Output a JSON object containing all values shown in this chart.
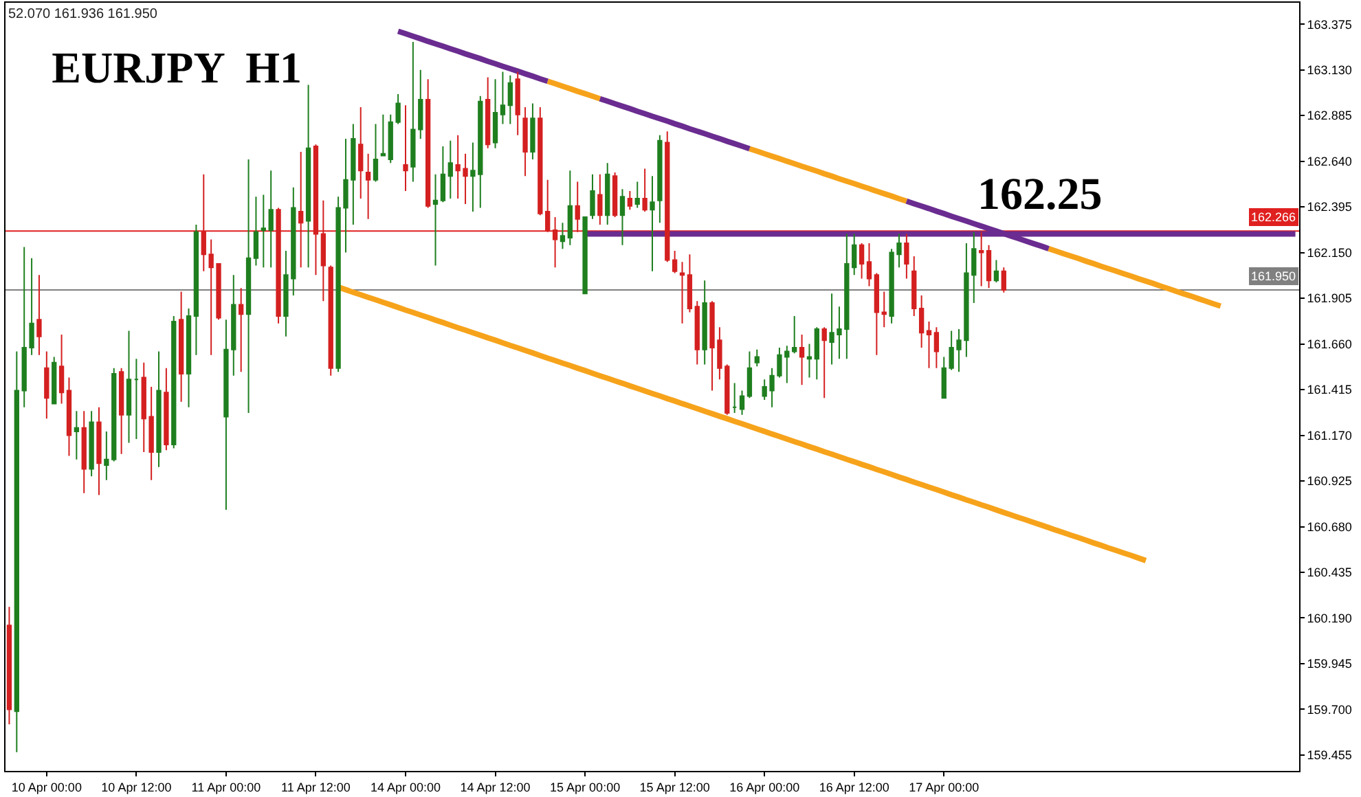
{
  "chart_data": {
    "type": "candlestick",
    "title": "EURJPY  H1",
    "annotations": [
      "52.070 161.936 161.950",
      {
        "text": "162.25",
        "y": 162.25
      }
    ],
    "categories": [
      null,
      null,
      null,
      null,
      null,
      "10 Apr 00:00",
      null,
      null,
      null,
      null,
      null,
      null,
      null,
      null,
      null,
      null,
      null,
      "10 Apr 12:00",
      null,
      null,
      null,
      null,
      null,
      null,
      null,
      null,
      null,
      null,
      null,
      "11 Apr 00:00",
      null,
      null,
      null,
      null,
      null,
      null,
      null,
      null,
      null,
      null,
      null,
      "11 Apr 12:00",
      null,
      null,
      null,
      null,
      null,
      null,
      null,
      null,
      null,
      null,
      null,
      "14 Apr 00:00",
      null,
      null,
      null,
      null,
      null,
      null,
      null,
      null,
      null,
      null,
      null,
      "14 Apr 12:00",
      null,
      null,
      null,
      null,
      null,
      null,
      null,
      null,
      null,
      null,
      null,
      "15 Apr 00:00",
      null,
      null,
      null,
      null,
      null,
      null,
      null,
      null,
      null,
      null,
      null,
      "15 Apr 12:00",
      null,
      null,
      null,
      null,
      null,
      null,
      null,
      null,
      null,
      null,
      null,
      "16 Apr 00:00",
      null,
      null,
      null,
      null,
      null,
      null,
      null,
      null,
      null,
      null,
      null,
      "16 Apr 12:00",
      null,
      null,
      null,
      null,
      null,
      null,
      null,
      null,
      null,
      null,
      null,
      "17 Apr 00:00",
      null,
      null,
      null,
      null,
      null,
      null,
      null,
      null,
      null,
      null,
      null,
      null,
      null,
      null,
      null,
      null,
      null,
      null,
      null,
      null,
      null,
      null,
      null,
      null,
      null,
      null,
      null,
      null,
      null,
      null,
      null,
      null,
      null,
      null,
      null,
      null,
      null,
      null,
      null,
      null,
      null,
      null,
      null,
      null,
      null,
      null,
      null
    ],
    "ohlc": [
      [
        160.15,
        160.25,
        159.62,
        159.7
      ],
      [
        159.69,
        161.62,
        159.47,
        161.41
      ],
      [
        161.41,
        162.18,
        161.32,
        161.64
      ],
      [
        161.64,
        162.12,
        161.6,
        161.77
      ],
      [
        161.79,
        162.03,
        161.6,
        161.7
      ],
      [
        161.53,
        161.62,
        161.26,
        161.37
      ],
      [
        161.34,
        161.59,
        161.34,
        161.56
      ],
      [
        161.54,
        161.71,
        161.34,
        161.4
      ],
      [
        161.41,
        161.48,
        161.06,
        161.17
      ],
      [
        161.19,
        161.3,
        161.04,
        161.21
      ],
      [
        161.21,
        161.3,
        160.86,
        160.99
      ],
      [
        160.99,
        161.3,
        160.95,
        161.24
      ],
      [
        161.24,
        161.32,
        160.85,
        161.02
      ],
      [
        161.01,
        161.19,
        160.93,
        161.04
      ],
      [
        161.04,
        161.53,
        161.03,
        161.5
      ],
      [
        161.51,
        161.53,
        161.07,
        161.28
      ],
      [
        161.28,
        161.73,
        161.13,
        161.47
      ],
      [
        161.47,
        161.58,
        161.15,
        161.47
      ],
      [
        161.48,
        161.56,
        161.08,
        161.26
      ],
      [
        161.27,
        161.43,
        160.93,
        161.08
      ],
      [
        161.08,
        161.62,
        161.0,
        161.41
      ],
      [
        161.4,
        161.53,
        161.09,
        161.12
      ],
      [
        161.12,
        161.81,
        161.1,
        161.78
      ],
      [
        161.79,
        161.94,
        161.35,
        161.5
      ],
      [
        161.5,
        161.85,
        161.32,
        161.81
      ],
      [
        161.81,
        162.3,
        161.6,
        162.26
      ],
      [
        162.26,
        162.57,
        162.05,
        162.14
      ],
      [
        162.14,
        162.22,
        161.6,
        162.07
      ],
      [
        162.09,
        162.09,
        161.79,
        161.8
      ],
      [
        161.27,
        161.79,
        160.77,
        161.63
      ],
      [
        161.63,
        162.03,
        161.49,
        161.87
      ],
      [
        161.87,
        161.96,
        161.51,
        161.82
      ],
      [
        161.82,
        162.65,
        161.29,
        162.12
      ],
      [
        162.12,
        162.45,
        162.08,
        162.26
      ],
      [
        162.27,
        162.46,
        162.07,
        162.28
      ],
      [
        162.27,
        162.59,
        162.07,
        162.38
      ],
      [
        162.38,
        162.39,
        161.77,
        161.81
      ],
      [
        161.81,
        162.16,
        161.7,
        162.03
      ],
      [
        162.01,
        162.5,
        161.92,
        162.39
      ],
      [
        162.37,
        162.69,
        162.07,
        162.31
      ],
      [
        162.32,
        163.05,
        162.07,
        162.71
      ],
      [
        162.72,
        162.73,
        162.03,
        162.25
      ],
      [
        162.25,
        162.43,
        161.89,
        162.08
      ],
      [
        162.07,
        162.08,
        161.49,
        161.53
      ],
      [
        161.53,
        162.45,
        161.51,
        162.39
      ],
      [
        162.39,
        162.76,
        162.15,
        162.54
      ],
      [
        162.54,
        162.84,
        162.3,
        162.76
      ],
      [
        162.73,
        162.93,
        162.44,
        162.59
      ],
      [
        162.58,
        162.68,
        162.33,
        162.54
      ],
      [
        162.54,
        162.84,
        162.53,
        162.65
      ],
      [
        162.67,
        162.89,
        162.67,
        162.68
      ],
      [
        162.65,
        162.89,
        162.63,
        162.85
      ],
      [
        162.85,
        163.0,
        162.84,
        162.95
      ],
      [
        162.62,
        162.94,
        162.48,
        162.59
      ],
      [
        162.61,
        163.28,
        162.53,
        162.81
      ],
      [
        162.81,
        163.13,
        162.76,
        162.97
      ],
      [
        162.97,
        163.08,
        162.39,
        162.4
      ],
      [
        162.41,
        162.57,
        162.08,
        162.43
      ],
      [
        162.43,
        162.72,
        162.42,
        162.57
      ],
      [
        162.56,
        162.75,
        162.44,
        162.63
      ],
      [
        162.62,
        162.78,
        162.44,
        162.59
      ],
      [
        162.6,
        162.68,
        162.41,
        162.56
      ],
      [
        162.56,
        162.74,
        162.37,
        162.59
      ],
      [
        162.57,
        162.99,
        162.39,
        162.96
      ],
      [
        162.97,
        163.09,
        162.71,
        162.73
      ],
      [
        162.74,
        163.08,
        162.71,
        162.9
      ],
      [
        162.89,
        163.12,
        162.84,
        162.94
      ],
      [
        162.94,
        163.1,
        162.84,
        163.06
      ],
      [
        163.08,
        163.12,
        162.78,
        162.89
      ],
      [
        162.87,
        162.93,
        162.56,
        162.69
      ],
      [
        162.69,
        162.95,
        162.65,
        162.87
      ],
      [
        162.87,
        162.93,
        162.35,
        162.36
      ],
      [
        162.37,
        162.54,
        162.26,
        162.27
      ],
      [
        162.27,
        162.34,
        162.07,
        162.22
      ],
      [
        162.21,
        162.31,
        162.17,
        162.24
      ],
      [
        162.23,
        162.59,
        162.19,
        162.4
      ],
      [
        162.4,
        162.53,
        162.26,
        162.33
      ],
      [
        161.93,
        162.34,
        161.93,
        162.34
      ],
      [
        162.35,
        162.57,
        162.33,
        162.48
      ],
      [
        162.46,
        162.57,
        162.3,
        162.35
      ],
      [
        162.35,
        162.63,
        162.3,
        162.57
      ],
      [
        162.56,
        162.58,
        162.34,
        162.35
      ],
      [
        162.35,
        162.49,
        162.19,
        162.45
      ],
      [
        162.44,
        162.48,
        162.38,
        162.4
      ],
      [
        162.41,
        162.53,
        162.39,
        162.44
      ],
      [
        162.44,
        162.6,
        162.37,
        162.38
      ],
      [
        162.38,
        162.56,
        162.05,
        162.42
      ],
      [
        162.43,
        162.78,
        162.31,
        162.75
      ],
      [
        162.74,
        162.8,
        162.1,
        162.11
      ],
      [
        162.11,
        162.16,
        162.04,
        162.05
      ],
      [
        162.04,
        162.1,
        161.77,
        162.03
      ],
      [
        162.03,
        162.14,
        161.83,
        161.85
      ],
      [
        161.86,
        161.89,
        161.55,
        161.63
      ],
      [
        161.63,
        162.0,
        161.55,
        161.88
      ],
      [
        161.88,
        161.89,
        161.41,
        161.64
      ],
      [
        161.68,
        161.75,
        161.47,
        161.53
      ],
      [
        161.54,
        161.55,
        161.28,
        161.29
      ],
      [
        161.32,
        161.45,
        161.29,
        161.32
      ],
      [
        161.31,
        161.41,
        161.28,
        161.38
      ],
      [
        161.38,
        161.62,
        161.37,
        161.53
      ],
      [
        161.56,
        161.63,
        161.54,
        161.59
      ],
      [
        161.38,
        161.47,
        161.36,
        161.43
      ],
      [
        161.41,
        161.53,
        161.32,
        161.49
      ],
      [
        161.49,
        161.64,
        161.48,
        161.6
      ],
      [
        161.59,
        161.65,
        161.45,
        161.62
      ],
      [
        161.62,
        161.81,
        161.61,
        161.64
      ],
      [
        161.64,
        161.71,
        161.44,
        161.59
      ],
      [
        161.58,
        161.66,
        161.48,
        161.59
      ],
      [
        161.58,
        161.75,
        161.47,
        161.74
      ],
      [
        161.74,
        161.75,
        161.37,
        161.68
      ],
      [
        161.67,
        161.93,
        161.55,
        161.72
      ],
      [
        161.71,
        161.86,
        161.58,
        161.74
      ],
      [
        161.74,
        162.25,
        161.58,
        162.09
      ],
      [
        162.07,
        162.25,
        162.03,
        162.19
      ],
      [
        162.19,
        162.2,
        162.01,
        162.09
      ],
      [
        162.1,
        162.2,
        161.97,
        162.01
      ],
      [
        162.03,
        162.04,
        161.6,
        161.83
      ],
      [
        161.83,
        161.94,
        161.75,
        161.82
      ],
      [
        161.81,
        162.17,
        161.77,
        162.15
      ],
      [
        162.14,
        162.25,
        162.07,
        162.2
      ],
      [
        162.2,
        162.25,
        162.01,
        162.09
      ],
      [
        162.05,
        162.13,
        161.81,
        161.85
      ],
      [
        161.85,
        161.92,
        161.64,
        161.72
      ],
      [
        161.73,
        161.78,
        161.53,
        161.71
      ],
      [
        161.72,
        161.75,
        161.53,
        161.62
      ],
      [
        161.37,
        161.59,
        161.37,
        161.53
      ],
      [
        161.53,
        161.73,
        161.52,
        161.64
      ],
      [
        161.63,
        161.74,
        161.51,
        161.68
      ],
      [
        161.68,
        162.2,
        161.59,
        162.04
      ],
      [
        162.03,
        162.26,
        161.88,
        162.17
      ],
      [
        162.16,
        162.26,
        161.97,
        162.15
      ],
      [
        162.16,
        162.19,
        161.96,
        162.0
      ],
      [
        162.0,
        162.11,
        161.99,
        162.05
      ],
      [
        162.05,
        162.07,
        161.936,
        161.95
      ],
      null,
      null,
      null,
      null,
      null,
      null,
      null,
      null,
      null,
      null,
      null,
      null,
      null,
      null,
      null,
      null,
      null,
      null,
      null,
      null,
      null,
      null,
      null,
      null,
      null,
      null,
      null,
      null,
      null,
      null,
      null,
      null,
      null,
      null,
      null,
      null,
      null,
      null,
      null
    ],
    "colors": [
      "#d42020",
      "#1f7f1f",
      "#1f7f1f",
      "#1f7f1f",
      "#d42020",
      "#d42020",
      "#1f7f1f",
      "#d42020",
      "#d42020",
      "#1f7f1f",
      "#d42020",
      "#1f7f1f",
      "#d42020",
      "#1f7f1f",
      "#1f7f1f",
      "#d42020",
      "#1f7f1f",
      "#1f7f1f",
      "#d42020",
      "#d42020",
      "#1f7f1f",
      "#d42020",
      "#1f7f1f",
      "#d42020",
      "#1f7f1f",
      "#1f7f1f",
      "#d42020",
      "#d42020",
      "#d42020",
      "#1f7f1f",
      "#1f7f1f",
      "#d42020",
      "#1f7f1f",
      "#1f7f1f",
      "#1f7f1f",
      "#1f7f1f",
      "#d42020",
      "#1f7f1f",
      "#1f7f1f",
      "#d42020",
      "#1f7f1f",
      "#d42020",
      "#d42020",
      "#d42020",
      "#1f7f1f",
      "#1f7f1f",
      "#1f7f1f",
      "#d42020",
      "#d42020",
      "#1f7f1f",
      "#1f7f1f",
      "#1f7f1f",
      "#1f7f1f",
      "#d42020",
      "#1f7f1f",
      "#1f7f1f",
      "#d42020",
      "#1f7f1f",
      "#1f7f1f",
      "#1f7f1f",
      "#d42020",
      "#d42020",
      "#1f7f1f",
      "#1f7f1f",
      "#d42020",
      "#1f7f1f",
      "#1f7f1f",
      "#1f7f1f",
      "#d42020",
      "#d42020",
      "#1f7f1f",
      "#d42020",
      "#d42020",
      "#d42020",
      "#1f7f1f",
      "#1f7f1f",
      "#d42020",
      "#1f7f1f",
      "#1f7f1f",
      "#d42020",
      "#1f7f1f",
      "#d42020",
      "#1f7f1f",
      "#d42020",
      "#1f7f1f",
      "#d42020",
      "#1f7f1f",
      "#1f7f1f",
      "#d42020",
      "#d42020",
      "#d42020",
      "#d42020",
      "#d42020",
      "#1f7f1f",
      "#d42020",
      "#d42020",
      "#d42020",
      "#1f7f1f",
      "#1f7f1f",
      "#1f7f1f",
      "#1f7f1f",
      "#1f7f1f",
      "#1f7f1f",
      "#1f7f1f",
      "#1f7f1f",
      "#1f7f1f",
      "#d42020",
      "#1f7f1f",
      "#1f7f1f",
      "#d42020",
      "#1f7f1f",
      "#1f7f1f",
      "#1f7f1f",
      "#1f7f1f",
      "#d42020",
      "#d42020",
      "#d42020",
      "#d42020",
      "#1f7f1f",
      "#1f7f1f",
      "#d42020",
      "#d42020",
      "#d42020",
      "#d42020",
      "#d42020",
      "#1f7f1f",
      "#1f7f1f",
      "#1f7f1f",
      "#1f7f1f",
      "#1f7f1f",
      "#d42020",
      "#d42020",
      "#1f7f1f",
      "#d42020",
      null,
      null,
      null,
      null,
      null,
      null,
      null,
      null,
      null,
      null,
      null,
      null,
      null,
      null,
      null,
      null,
      null,
      null,
      null,
      null,
      null,
      null,
      null,
      null,
      null,
      null,
      null,
      null,
      null,
      null,
      null,
      null,
      null,
      null,
      null,
      null,
      null,
      null,
      null
    ],
    "series": [
      {
        "type": "line",
        "color": "#f6a31b",
        "values": [
          null,
          null,
          null,
          null,
          null,
          null,
          null,
          null,
          null,
          null,
          null,
          null,
          null,
          null,
          null,
          null,
          null,
          null,
          null,
          null,
          null,
          null,
          null,
          null,
          null,
          null,
          null,
          null,
          null,
          null,
          null,
          null,
          null,
          null,
          null,
          null,
          null,
          null,
          null,
          null,
          null,
          null,
          null,
          null,
          null,
          null,
          null,
          null,
          null,
          null,
          null,
          null,
          null,
          null,
          null,
          null,
          null,
          null,
          null,
          null,
          null,
          null,
          null,
          null,
          null,
          null,
          null,
          null,
          null,
          null,
          null,
          null,
          163.069,
          163.056,
          163.042,
          163.029,
          163.015,
          163.002,
          162.989,
          162.975,
          null,
          null,
          null,
          null,
          null,
          null,
          null,
          null,
          null,
          null,
          null,
          null,
          null,
          null,
          null,
          null,
          null,
          null,
          null,
          162.707,
          162.694,
          162.68,
          162.667,
          162.654,
          162.64,
          162.627,
          162.613,
          162.6,
          162.587,
          162.573,
          162.56,
          162.546,
          162.533,
          162.52,
          162.506,
          162.493,
          162.479,
          162.466,
          162.453,
          162.439,
          162.426,
          null,
          null,
          null,
          null,
          null,
          null,
          null,
          null,
          null,
          null,
          null,
          null,
          null,
          null,
          null,
          null,
          null,
          null,
          162.171,
          162.158,
          162.144,
          162.131,
          162.118,
          162.104,
          162.091,
          162.077,
          162.064,
          162.051,
          162.037,
          162.024,
          162.01,
          161.997,
          161.984,
          161.97,
          161.957,
          161.943,
          161.93,
          161.917,
          161.903,
          161.89,
          161.876,
          161.863,
          null,
          null,
          null,
          null,
          null,
          null,
          null,
          null,
          null,
          null
        ]
      },
      {
        "type": "line",
        "color": "#6a2c90",
        "values": [
          null,
          null,
          null,
          null,
          null,
          null,
          null,
          null,
          null,
          null,
          null,
          null,
          null,
          null,
          null,
          null,
          null,
          null,
          null,
          null,
          null,
          null,
          null,
          null,
          null,
          null,
          null,
          null,
          null,
          null,
          null,
          null,
          null,
          null,
          null,
          null,
          null,
          null,
          null,
          null,
          null,
          null,
          null,
          null,
          null,
          null,
          null,
          null,
          null,
          null,
          null,
          null,
          163.337,
          163.324,
          163.31,
          163.297,
          163.283,
          163.27,
          163.257,
          163.243,
          163.23,
          163.216,
          163.203,
          163.19,
          163.176,
          163.163,
          163.149,
          163.136,
          163.123,
          163.109,
          163.096,
          163.082,
          163.069,
          null,
          null,
          null,
          null,
          null,
          null,
          162.975,
          162.962,
          162.948,
          162.935,
          162.922,
          162.908,
          162.895,
          162.881,
          162.868,
          162.855,
          162.841,
          162.828,
          162.814,
          162.801,
          162.788,
          162.774,
          162.761,
          162.747,
          162.734,
          162.721,
          162.707,
          null,
          null,
          null,
          null,
          null,
          null,
          null,
          null,
          null,
          null,
          null,
          null,
          null,
          null,
          null,
          null,
          null,
          null,
          null,
          null,
          162.426,
          162.412,
          162.399,
          162.386,
          162.372,
          162.359,
          162.345,
          162.332,
          162.319,
          162.305,
          162.292,
          162.278,
          162.265,
          162.252,
          162.238,
          162.225,
          162.211,
          162.198,
          162.185,
          162.171,
          null,
          null,
          null,
          null,
          null,
          null,
          null,
          null,
          null,
          null,
          null,
          null,
          null,
          null,
          null,
          null,
          null,
          null,
          null,
          null,
          null,
          null,
          null,
          null,
          null,
          null,
          null,
          null,
          null,
          null,
          null,
          null,
          null
        ]
      },
      {
        "type": "line",
        "color": "#f6a31b",
        "values": [
          null,
          null,
          null,
          null,
          null,
          null,
          null,
          null,
          null,
          null,
          null,
          null,
          null,
          null,
          null,
          null,
          null,
          null,
          null,
          null,
          null,
          null,
          null,
          null,
          null,
          null,
          null,
          null,
          null,
          null,
          null,
          null,
          null,
          null,
          null,
          null,
          null,
          null,
          null,
          null,
          null,
          null,
          null,
          null,
          161.965,
          161.951,
          161.937,
          161.924,
          161.91,
          161.897,
          161.883,
          161.87,
          161.856,
          161.842,
          161.829,
          161.815,
          161.802,
          161.788,
          161.775,
          161.761,
          161.747,
          161.734,
          161.72,
          161.707,
          161.693,
          161.68,
          161.666,
          161.652,
          161.639,
          161.625,
          161.612,
          161.598,
          161.584,
          161.571,
          161.557,
          161.544,
          161.53,
          161.517,
          161.503,
          161.489,
          161.476,
          161.462,
          161.449,
          161.435,
          161.422,
          161.408,
          161.394,
          161.381,
          161.367,
          161.354,
          161.34,
          161.327,
          161.313,
          161.299,
          161.286,
          161.272,
          161.259,
          161.245,
          161.232,
          161.218,
          161.204,
          161.191,
          161.177,
          161.164,
          161.15,
          161.136,
          161.123,
          161.109,
          161.096,
          161.082,
          161.069,
          161.055,
          161.041,
          161.028,
          161.014,
          161.001,
          160.987,
          160.974,
          160.96,
          160.946,
          160.933,
          160.919,
          160.906,
          160.892,
          160.879,
          160.865,
          160.851,
          160.838,
          160.824,
          160.811,
          160.797,
          160.784,
          160.77,
          160.756,
          160.743,
          160.729,
          160.716,
          160.702,
          160.689,
          160.675,
          160.661,
          160.648,
          160.634,
          160.621,
          160.607,
          160.593,
          160.58,
          160.566,
          160.553,
          160.539,
          160.526,
          160.512,
          160.498,
          null,
          null,
          null,
          null,
          null,
          null,
          null,
          null,
          null,
          null,
          null,
          null,
          null,
          null,
          null,
          null,
          null,
          null,
          null,
          null
        ]
      },
      {
        "type": "line",
        "color": "#6a2c90",
        "values": [
          null,
          null,
          null,
          null,
          null,
          null,
          null,
          null,
          null,
          null,
          null,
          null,
          null,
          null,
          null,
          null,
          null,
          null,
          null,
          null,
          null,
          null,
          null,
          null,
          null,
          null,
          null,
          null,
          null,
          null,
          null,
          null,
          null,
          null,
          null,
          null,
          null,
          null,
          null,
          null,
          null,
          null,
          null,
          null,
          null,
          null,
          null,
          null,
          null,
          null,
          null,
          null,
          null,
          null,
          null,
          null,
          null,
          null,
          null,
          null,
          null,
          null,
          null,
          null,
          null,
          null,
          null,
          null,
          null,
          null,
          null,
          null,
          null,
          null,
          null,
          null,
          null,
          162.25,
          162.25,
          162.25,
          162.25,
          162.25,
          162.25,
          162.25,
          162.25,
          162.25,
          162.25,
          162.25,
          162.25,
          162.25,
          162.25,
          162.25,
          162.25,
          162.25,
          162.25,
          162.25,
          162.25,
          162.25,
          162.25,
          162.25,
          162.25,
          162.25,
          162.25,
          162.25,
          162.25,
          162.25,
          162.25,
          162.25,
          162.25,
          162.25,
          162.25,
          162.25,
          162.25,
          162.25,
          162.25,
          162.25,
          162.25,
          162.25,
          162.25,
          162.25,
          162.25,
          162.25,
          162.25,
          162.25,
          162.25,
          162.25,
          162.25,
          162.25,
          162.25,
          162.25,
          162.25,
          162.25,
          162.25,
          162.25,
          162.25,
          162.25,
          162.25,
          162.25,
          162.25,
          162.25,
          162.25,
          162.25,
          162.25,
          162.25,
          162.25,
          162.25,
          162.25,
          162.25,
          162.25,
          162.25,
          162.25,
          162.25,
          162.25,
          162.25,
          162.25,
          162.25,
          162.25,
          162.25,
          162.25,
          162.25,
          162.25,
          162.25,
          162.25,
          162.25,
          162.25,
          162.25,
          162.25,
          162.25,
          162.25,
          162.25,
          162.25,
          162.25,
          162.25
        ]
      }
    ],
    "ref_lines": [
      {
        "axis": "y",
        "value": 162.266,
        "label": "162.266",
        "color": "#e02020"
      },
      {
        "axis": "y",
        "value": 161.95,
        "label": "161.950",
        "color": "#808080"
      }
    ],
    "ylim": [
      159.37,
      163.49
    ],
    "yticks": [
      {
        "value": 163.375,
        "label": "163.375"
      },
      {
        "value": 163.13,
        "label": "163.130"
      },
      {
        "value": 162.885,
        "label": "162.885"
      },
      {
        "value": 162.64,
        "label": "162.640"
      },
      {
        "value": 162.395,
        "label": "162.395"
      },
      {
        "value": 162.15,
        "label": "162.150"
      },
      {
        "value": 161.905,
        "label": "161.905"
      },
      {
        "value": 161.66,
        "label": "161.660"
      },
      {
        "value": 161.415,
        "label": "161.415"
      },
      {
        "value": 161.17,
        "label": "161.170"
      },
      {
        "value": 160.925,
        "label": "160.925"
      },
      {
        "value": 160.68,
        "label": "160.680"
      },
      {
        "value": 160.435,
        "label": "160.435"
      },
      {
        "value": 160.19,
        "label": "160.190"
      },
      {
        "value": 159.945,
        "label": "159.945"
      },
      {
        "value": 159.7,
        "label": "159.700"
      },
      {
        "value": 159.455,
        "label": "159.455"
      }
    ]
  }
}
